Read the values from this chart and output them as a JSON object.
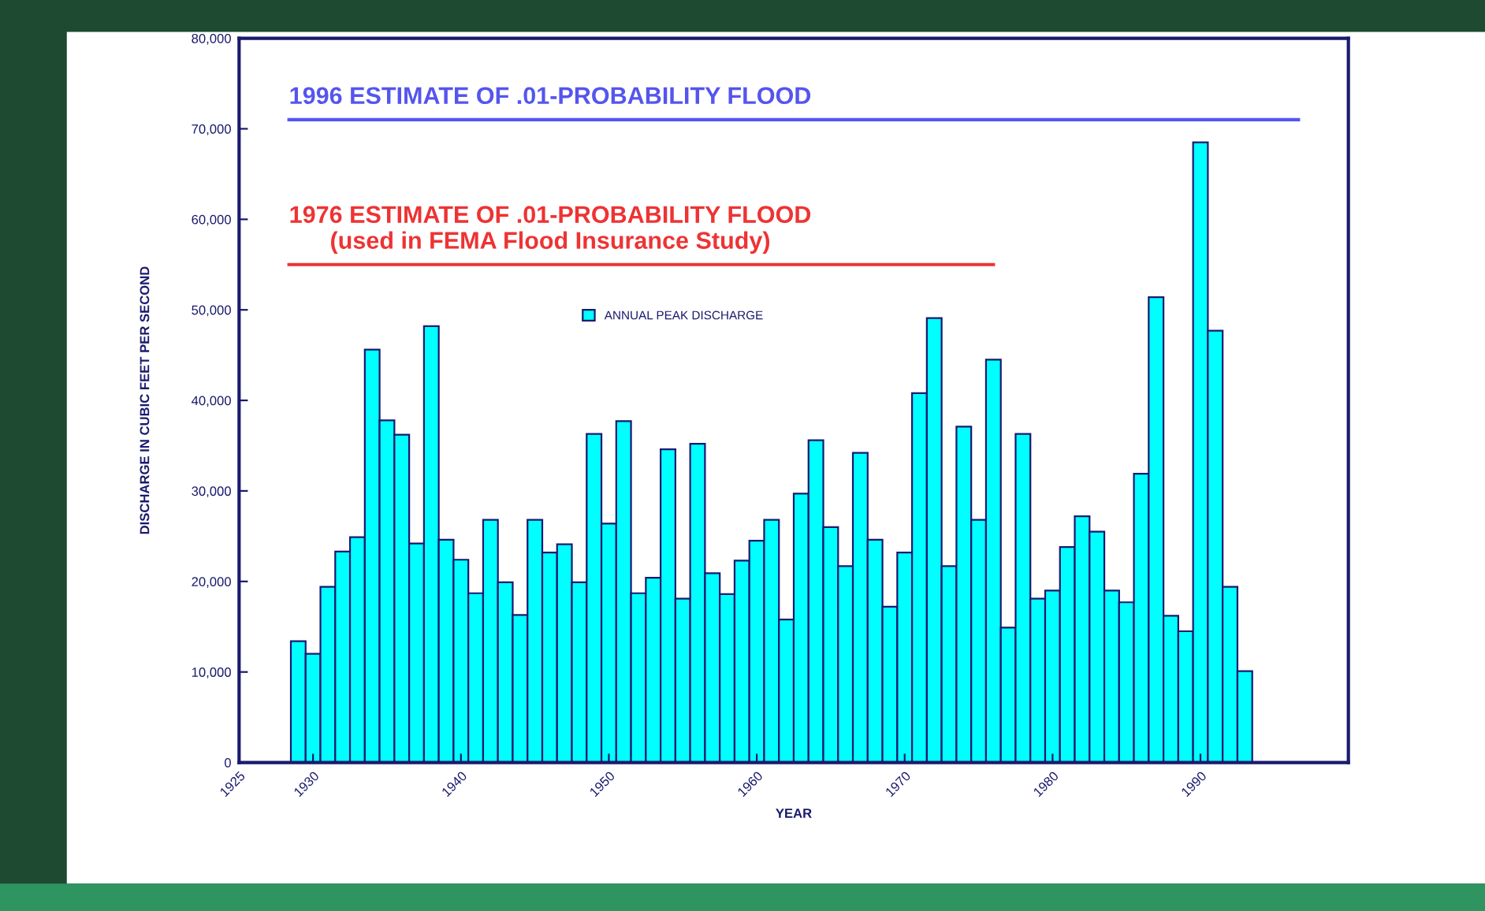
{
  "chart_data": {
    "type": "bar",
    "xlabel": "YEAR",
    "ylabel": "DISCHARGE IN CUBIC FEET PER SECOND",
    "x": [
      1929,
      1930,
      1931,
      1932,
      1933,
      1934,
      1935,
      1936,
      1937,
      1938,
      1939,
      1940,
      1941,
      1942,
      1943,
      1944,
      1945,
      1946,
      1947,
      1948,
      1949,
      1950,
      1951,
      1952,
      1953,
      1954,
      1955,
      1956,
      1957,
      1958,
      1959,
      1960,
      1961,
      1962,
      1963,
      1964,
      1965,
      1966,
      1967,
      1968,
      1969,
      1970,
      1971,
      1972,
      1973,
      1974,
      1975,
      1976,
      1977,
      1978,
      1979,
      1980,
      1981,
      1982,
      1983,
      1984,
      1985,
      1986,
      1987,
      1988,
      1989,
      1990,
      1991,
      1992,
      1993
    ],
    "series": [
      {
        "name": "ANNUAL PEAK DISCHARGE",
        "color": "#00ffff",
        "values": [
          13400,
          12000,
          19400,
          23300,
          24900,
          45600,
          37800,
          36200,
          24200,
          48200,
          24600,
          22400,
          18700,
          26800,
          19900,
          16300,
          26800,
          23200,
          24100,
          19900,
          36300,
          26400,
          37700,
          18700,
          20400,
          34600,
          18100,
          35200,
          20900,
          18600,
          22300,
          24500,
          26800,
          15800,
          29700,
          35600,
          26000,
          21700,
          34200,
          24600,
          17200,
          23200,
          40800,
          49100,
          21700,
          37100,
          26800,
          44500,
          14900,
          36300,
          18100,
          19000,
          23800,
          27200,
          25500,
          19000,
          17700,
          31900,
          51400,
          16200,
          14500,
          68500,
          47700,
          19400,
          10100
        ]
      }
    ],
    "xlim": [
      1925,
      2000
    ],
    "xticks": [
      1925,
      1930,
      1940,
      1950,
      1960,
      1970,
      1980,
      1990
    ],
    "ylim": [
      0,
      80000
    ],
    "yticks": [
      {
        "value": 0,
        "label": "0"
      },
      {
        "value": 10000,
        "label": "10,000"
      },
      {
        "value": 20000,
        "label": "20,000"
      },
      {
        "value": 30000,
        "label": "30,000"
      },
      {
        "value": 40000,
        "label": "40,000"
      },
      {
        "value": 50000,
        "label": "50,000"
      },
      {
        "value": 60000,
        "label": "60,000"
      },
      {
        "value": 70000,
        "label": "70,000"
      },
      {
        "value": 80000,
        "label": "80,000"
      }
    ],
    "ref_lines": [
      {
        "axis": "y",
        "value": 71000,
        "label": "1996 ESTIMATE OF .01-PROBABILITY FLOOD",
        "color": "#5555ee"
      },
      {
        "axis": "y",
        "value": 55000,
        "label": "1976 ESTIMATE OF .01-PROBABILITY FLOOD\n(used in FEMA Flood Insurance Study)",
        "color": "#ee3333"
      }
    ],
    "grid": false,
    "legend": "top left"
  }
}
